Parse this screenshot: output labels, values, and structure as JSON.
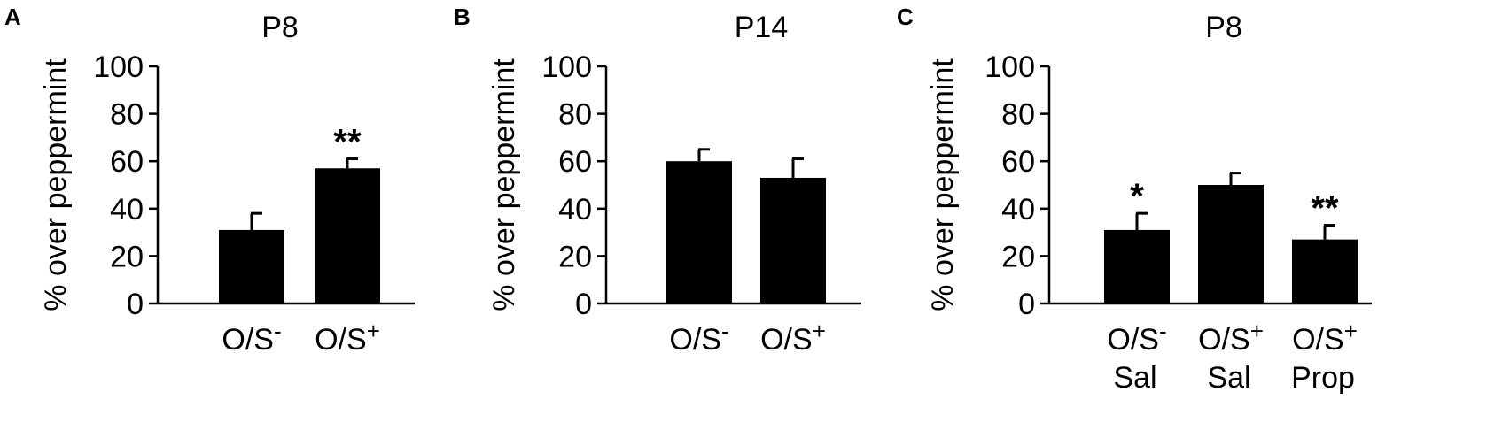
{
  "chart_data": [
    {
      "type": "bar",
      "panel": "A",
      "title": "P8",
      "ylabel": "% over peppermint",
      "ylim": [
        0,
        100
      ],
      "yticks": [
        0,
        20,
        40,
        60,
        80,
        100
      ],
      "categories": [
        {
          "line1": "O/S",
          "sup": "-",
          "line2": ""
        },
        {
          "line1": "O/S",
          "sup": "+",
          "line2": ""
        }
      ],
      "values": [
        31,
        57
      ],
      "errors": [
        7,
        4
      ],
      "significance": [
        "",
        "**"
      ]
    },
    {
      "type": "bar",
      "panel": "B",
      "title": "P14",
      "ylabel": "% over peppermint",
      "ylim": [
        0,
        100
      ],
      "yticks": [
        0,
        20,
        40,
        60,
        80,
        100
      ],
      "categories": [
        {
          "line1": "O/S",
          "sup": "-",
          "line2": ""
        },
        {
          "line1": "O/S",
          "sup": "+",
          "line2": ""
        }
      ],
      "values": [
        60,
        53
      ],
      "errors": [
        5,
        8
      ],
      "significance": [
        "",
        ""
      ]
    },
    {
      "type": "bar",
      "panel": "C",
      "title": "P8",
      "ylabel": "% over peppermint",
      "ylim": [
        0,
        100
      ],
      "yticks": [
        0,
        20,
        40,
        60,
        80,
        100
      ],
      "categories": [
        {
          "line1": "O/S",
          "sup": "-",
          "line2": "Sal"
        },
        {
          "line1": "O/S",
          "sup": "+",
          "line2": "Sal"
        },
        {
          "line1": "O/S",
          "sup": "+",
          "line2": "Prop"
        }
      ],
      "values": [
        31,
        50,
        27
      ],
      "errors": [
        7,
        5,
        6
      ],
      "significance": [
        "*",
        "",
        "**"
      ]
    }
  ],
  "colors": {
    "bar": "#000000",
    "axis": "#000000",
    "text": "#000000"
  }
}
